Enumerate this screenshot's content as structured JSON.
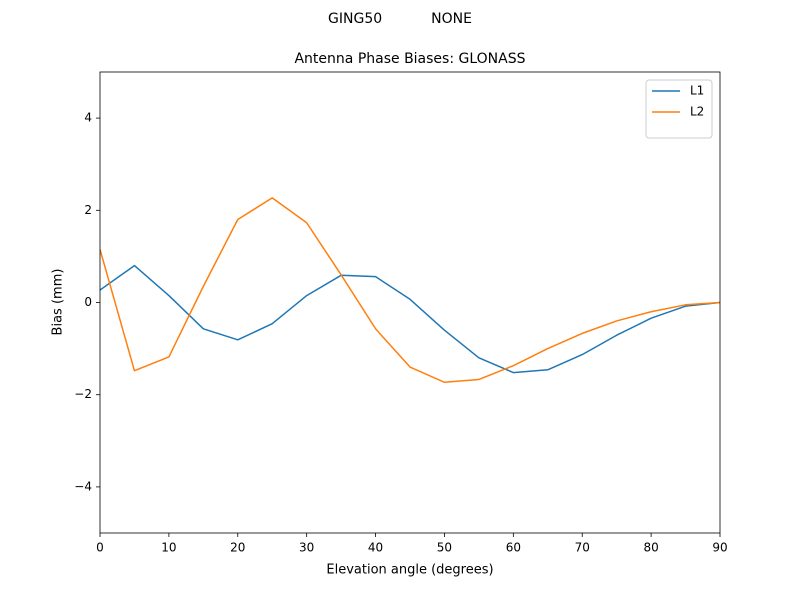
{
  "chart_data": {
    "type": "line",
    "suptitle": "GING50           NONE",
    "title": "Antenna Phase Biases: GLONASS",
    "xlabel": "Elevation angle (degrees)",
    "ylabel": "Bias (mm)",
    "x": [
      0,
      5,
      10,
      15,
      20,
      25,
      30,
      35,
      40,
      45,
      50,
      55,
      60,
      65,
      70,
      75,
      80,
      85,
      90
    ],
    "series": [
      {
        "name": "L1",
        "color": "#1f77b4",
        "values": [
          0.27,
          0.8,
          0.15,
          -0.57,
          -0.81,
          -0.46,
          0.15,
          0.59,
          0.56,
          0.07,
          -0.6,
          -1.2,
          -1.52,
          -1.46,
          -1.13,
          -0.71,
          -0.34,
          -0.08,
          0
        ]
      },
      {
        "name": "L2",
        "color": "#ff7f0e",
        "values": [
          1.15,
          -1.48,
          -1.18,
          0.35,
          1.8,
          2.27,
          1.73,
          0.6,
          -0.57,
          -1.4,
          -1.73,
          -1.67,
          -1.37,
          -1,
          -0.67,
          -0.4,
          -0.2,
          -0.05,
          0
        ]
      }
    ],
    "xlim": [
      0,
      90
    ],
    "ylim": [
      -5,
      5
    ],
    "xticks": [
      0,
      10,
      20,
      30,
      40,
      50,
      60,
      70,
      80,
      90
    ],
    "yticks": [
      {
        "value": -4,
        "label": "−4"
      },
      {
        "value": -2,
        "label": "−2"
      },
      0,
      2,
      4
    ],
    "grid": false,
    "legend": "upper right"
  }
}
